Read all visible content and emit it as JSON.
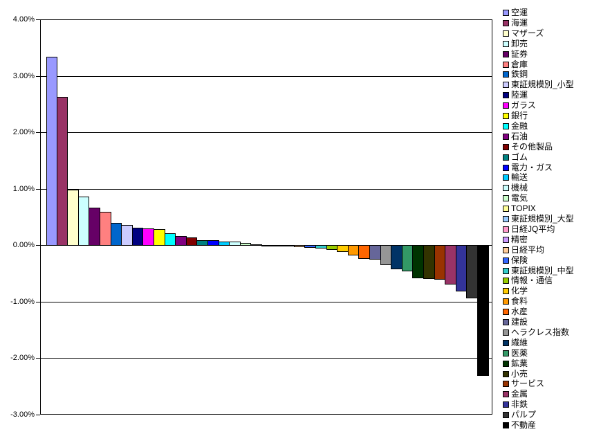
{
  "chart_data": {
    "type": "bar",
    "title": "",
    "xlabel": "",
    "ylabel": "",
    "grid": true,
    "legend_position": "right",
    "y_axis": {
      "min": -3.0,
      "max": 4.0,
      "step": 1.0,
      "tick_labels": [
        "4.00%",
        "3.00%",
        "2.00%",
        "1.00%",
        "0.00%",
        "-1.00%",
        "-2.00%",
        "-3.00%"
      ]
    },
    "value_unit": "%",
    "series": [
      {
        "name": "空運",
        "value": 3.35,
        "color": "#9999FF"
      },
      {
        "name": "海運",
        "value": 2.63,
        "color": "#993366"
      },
      {
        "name": "マザーズ",
        "value": 0.99,
        "color": "#FFFFCC"
      },
      {
        "name": "卸売",
        "value": 0.87,
        "color": "#CCFFFF"
      },
      {
        "name": "証券",
        "value": 0.67,
        "color": "#660066"
      },
      {
        "name": "倉庫",
        "value": 0.6,
        "color": "#FF8080"
      },
      {
        "name": "鉄鋼",
        "value": 0.41,
        "color": "#0066CC"
      },
      {
        "name": "東証規模別_小型",
        "value": 0.37,
        "color": "#CCCCFF"
      },
      {
        "name": "陸運",
        "value": 0.32,
        "color": "#000080"
      },
      {
        "name": "ガラス",
        "value": 0.31,
        "color": "#FF00FF"
      },
      {
        "name": "銀行",
        "value": 0.3,
        "color": "#FFFF00"
      },
      {
        "name": "金融",
        "value": 0.22,
        "color": "#00FFFF"
      },
      {
        "name": "石油",
        "value": 0.17,
        "color": "#800080"
      },
      {
        "name": "その他製品",
        "value": 0.15,
        "color": "#800000"
      },
      {
        "name": "ゴム",
        "value": 0.1,
        "color": "#008080"
      },
      {
        "name": "電力・ガス",
        "value": 0.1,
        "color": "#0000FF"
      },
      {
        "name": "輸送",
        "value": 0.07,
        "color": "#00CCFF"
      },
      {
        "name": "機械",
        "value": 0.07,
        "color": "#CCFFFF"
      },
      {
        "name": "電気",
        "value": 0.05,
        "color": "#CCFFCC"
      },
      {
        "name": "TOPIX",
        "value": 0.02,
        "color": "#FFFF99"
      },
      {
        "name": "東証規模別_大型",
        "value": 0.01,
        "color": "#99CCFF"
      },
      {
        "name": "日経JQ平均",
        "value": 0.0,
        "color": "#FF99CC"
      },
      {
        "name": "精密",
        "value": -0.01,
        "color": "#CC99FF"
      },
      {
        "name": "日経平均",
        "value": -0.04,
        "color": "#FFCC99"
      },
      {
        "name": "保険",
        "value": -0.05,
        "color": "#3366FF"
      },
      {
        "name": "東証規模別_中型",
        "value": -0.06,
        "color": "#33CCCC"
      },
      {
        "name": "情報・通信",
        "value": -0.09,
        "color": "#99CC00"
      },
      {
        "name": "化学",
        "value": -0.12,
        "color": "#FFCC00"
      },
      {
        "name": "食料",
        "value": -0.18,
        "color": "#FF9900"
      },
      {
        "name": "水産",
        "value": -0.24,
        "color": "#FF6600"
      },
      {
        "name": "建設",
        "value": -0.26,
        "color": "#666699"
      },
      {
        "name": "ヘラクレス指数",
        "value": -0.35,
        "color": "#969696"
      },
      {
        "name": "繊維",
        "value": -0.43,
        "color": "#003366"
      },
      {
        "name": "医薬",
        "value": -0.47,
        "color": "#339966"
      },
      {
        "name": "鉱業",
        "value": -0.59,
        "color": "#003300"
      },
      {
        "name": "小売",
        "value": -0.6,
        "color": "#333300"
      },
      {
        "name": "サービス",
        "value": -0.61,
        "color": "#993300"
      },
      {
        "name": "金属",
        "value": -0.7,
        "color": "#993366"
      },
      {
        "name": "非鉄",
        "value": -0.82,
        "color": "#333399"
      },
      {
        "name": "パルプ",
        "value": -0.94,
        "color": "#333333"
      },
      {
        "name": "不動産",
        "value": -2.32,
        "color": "#000000"
      }
    ]
  }
}
